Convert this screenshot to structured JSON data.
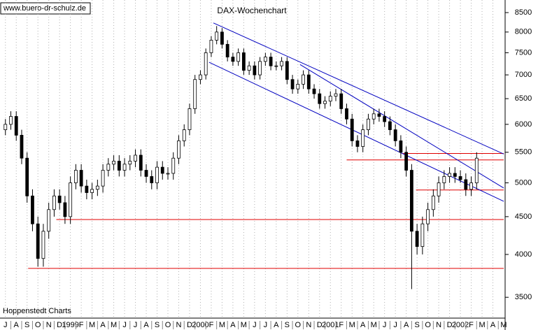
{
  "chart_data": {
    "type": "candlestick",
    "title": "DAX-Wochenchart",
    "source": "www.buero-dr-schulz.de",
    "credit": "Hoppenstedt Charts",
    "categories": [
      "J",
      "A",
      "S",
      "O",
      "N",
      "D",
      "1999",
      "F",
      "M",
      "A",
      "M",
      "J",
      "J",
      "A",
      "S",
      "O",
      "N",
      "D",
      "2000",
      "F",
      "M",
      "A",
      "M",
      "J",
      "J",
      "A",
      "S",
      "O",
      "N",
      "D",
      "2001",
      "F",
      "M",
      "A",
      "M",
      "J",
      "J",
      "A",
      "S",
      "O",
      "N",
      "D",
      "2002",
      "F",
      "M",
      "A",
      "M"
    ],
    "x": [
      0,
      0.5,
      1,
      1.5,
      2,
      2.5,
      3,
      3.5,
      4,
      4.5,
      5,
      5.5,
      6,
      6.5,
      7,
      7.5,
      8,
      8.5,
      9,
      9.5,
      10,
      10.5,
      11,
      11.5,
      12,
      12.5,
      13,
      13.5,
      14,
      14.5,
      15,
      15.5,
      16,
      16.5,
      17,
      17.5,
      18,
      18.5,
      19,
      19.5,
      20,
      20.5,
      21,
      21.5,
      22,
      22.5,
      23,
      23.5,
      24,
      24.5,
      25,
      25.5,
      26,
      26.5,
      27,
      27.5,
      28,
      28.5,
      29,
      29.5,
      30,
      30.5,
      31,
      31.5,
      32,
      32.5,
      33,
      33.5,
      34,
      34.5,
      35,
      35.5,
      36,
      36.5,
      37,
      37.5,
      38,
      38.5,
      39,
      39.5,
      40,
      40.5,
      41,
      41.5,
      42,
      42.5,
      43,
      43.5
    ],
    "open": [
      5900,
      6000,
      6150,
      5800,
      5400,
      4800,
      4400,
      3950,
      4300,
      4600,
      4800,
      4700,
      4500,
      5000,
      5200,
      4950,
      4850,
      4900,
      4950,
      5200,
      5300,
      5350,
      5200,
      5300,
      5350,
      5450,
      5200,
      5100,
      5000,
      5250,
      5150,
      5150,
      5400,
      5700,
      5900,
      6300,
      6900,
      7000,
      7500,
      7800,
      8000,
      7700,
      7400,
      7300,
      7500,
      7100,
      7200,
      7000,
      7300,
      7400,
      7200,
      7200,
      7300,
      6900,
      6700,
      6800,
      7000,
      6700,
      6600,
      6400,
      6450,
      6550,
      6600,
      6300,
      6100,
      5700,
      5600,
      5900,
      6100,
      6200,
      6150,
      6050,
      5900,
      5700,
      5500,
      5200,
      4300,
      4100,
      4400,
      4600,
      4800,
      5000,
      5100,
      5150,
      5100,
      5050,
      4900,
      5000
    ],
    "high": [
      6100,
      6250,
      6250,
      5900,
      5500,
      4900,
      4500,
      4400,
      4700,
      4900,
      4900,
      4800,
      5100,
      5300,
      5300,
      5050,
      5000,
      5050,
      5300,
      5400,
      5450,
      5450,
      5400,
      5450,
      5550,
      5550,
      5300,
      5200,
      5350,
      5350,
      5250,
      5500,
      5800,
      6000,
      6400,
      7000,
      7100,
      7600,
      7900,
      8150,
      8100,
      7800,
      7500,
      7600,
      7600,
      7300,
      7300,
      7400,
      7500,
      7500,
      7300,
      7400,
      7400,
      7000,
      6900,
      7100,
      7100,
      6800,
      6700,
      6550,
      6650,
      6700,
      6700,
      6400,
      6200,
      5800,
      6000,
      6200,
      6300,
      6300,
      6250,
      6150,
      6000,
      5800,
      5600,
      5300,
      4400,
      4500,
      4700,
      4900,
      5100,
      5200,
      5250,
      5250,
      5200,
      5150,
      5100,
      5500
    ],
    "low": [
      5800,
      5900,
      5700,
      5300,
      4700,
      4300,
      3850,
      3850,
      4200,
      4500,
      4600,
      4400,
      4400,
      4900,
      4850,
      4750,
      4750,
      4800,
      4850,
      5100,
      5200,
      5100,
      5100,
      5200,
      5250,
      5100,
      5000,
      4900,
      4900,
      5050,
      5050,
      5050,
      5300,
      5600,
      5800,
      6200,
      6800,
      6900,
      7400,
      7700,
      7600,
      7300,
      7200,
      7200,
      7000,
      7000,
      6900,
      6900,
      7200,
      7100,
      7100,
      7100,
      6800,
      6600,
      6600,
      6700,
      6600,
      6500,
      6300,
      6300,
      6350,
      6450,
      6200,
      6000,
      5600,
      5500,
      5500,
      5800,
      6000,
      6050,
      5950,
      5800,
      5600,
      5400,
      5100,
      3590,
      4000,
      4000,
      4300,
      4500,
      4700,
      4900,
      5000,
      5000,
      5000,
      4800,
      4800,
      4900
    ],
    "close": [
      6000,
      6150,
      5800,
      5400,
      4800,
      4400,
      3950,
      4300,
      4600,
      4800,
      4700,
      4500,
      5000,
      5200,
      4950,
      4850,
      4900,
      4950,
      5200,
      5300,
      5350,
      5200,
      5300,
      5350,
      5450,
      5200,
      5100,
      5000,
      5250,
      5150,
      5150,
      5400,
      5700,
      5900,
      6300,
      6900,
      7000,
      7500,
      7800,
      8000,
      7700,
      7400,
      7300,
      7500,
      7100,
      7200,
      7000,
      7300,
      7400,
      7200,
      7200,
      7300,
      6900,
      6700,
      6800,
      7000,
      6700,
      6600,
      6400,
      6450,
      6550,
      6600,
      6300,
      6100,
      5700,
      5600,
      5900,
      6100,
      6200,
      6150,
      6050,
      5900,
      5700,
      5500,
      5200,
      4300,
      4100,
      4400,
      4600,
      4800,
      5000,
      5100,
      5150,
      5100,
      5050,
      4900,
      5000,
      5400
    ],
    "color": "#000000",
    "lines": [
      {
        "color": "#e00000",
        "x": [
          2.1,
          46
        ],
        "y": [
          3830,
          3830
        ]
      },
      {
        "color": "#e00000",
        "x": [
          4.7,
          46
        ],
        "y": [
          4460,
          4460
        ]
      },
      {
        "color": "#e00000",
        "x": [
          37.9,
          46
        ],
        "y": [
          4890,
          4890
        ]
      },
      {
        "color": "#e00000",
        "x": [
          31.5,
          46
        ],
        "y": [
          5370,
          5370
        ]
      },
      {
        "color": "#e00000",
        "x": [
          36.6,
          46
        ],
        "y": [
          5480,
          5480
        ]
      },
      {
        "color": "#0000c0",
        "x": [
          19.2,
          46
        ],
        "y": [
          8230,
          5470
        ]
      },
      {
        "color": "#0000c0",
        "x": [
          18.8,
          46
        ],
        "y": [
          7280,
          4720
        ]
      },
      {
        "color": "#0000c0",
        "x": [
          27.2,
          46
        ],
        "y": [
          7230,
          4920
        ]
      }
    ],
    "xlim": [
      -0.5,
      46
    ],
    "ylim": [
      3280,
      8840
    ],
    "log_y": true,
    "yticks": [
      3500,
      4000,
      4500,
      5000,
      5500,
      6000,
      6500,
      7000,
      7500,
      8000,
      8500
    ],
    "grid": true
  }
}
